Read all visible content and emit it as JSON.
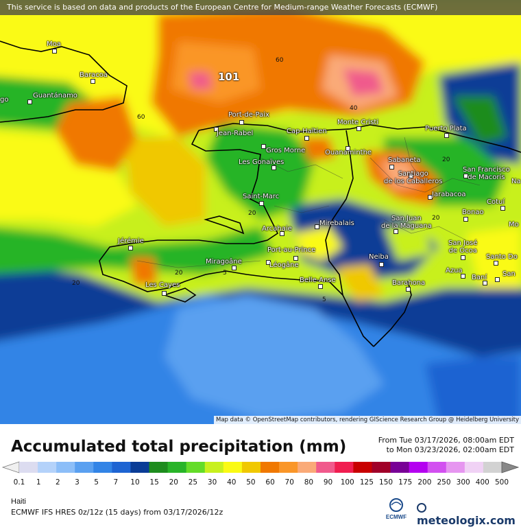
{
  "banner": "This service is based on data and products of the European Centre for Medium-range Weather Forecasts (ECMWF)",
  "attribution": "Map data © OpenStreetMap contributors, rendering GIScience Research Group @ Heidelberg University",
  "max_label": "101",
  "contour_labels": [
    "60",
    "60",
    "40",
    "20",
    "20",
    "20",
    "5",
    "5",
    "20",
    "20"
  ],
  "cities": [
    {
      "name": "Moa"
    },
    {
      "name": "Baracoa"
    },
    {
      "name": "Guantánamo"
    },
    {
      "name": "go"
    },
    {
      "name": "Port-de-Paix"
    },
    {
      "name": "Jean-Rabel"
    },
    {
      "name": "Cap-Haïtien"
    },
    {
      "name": "Monte Cristi"
    },
    {
      "name": "Puerto Plata"
    },
    {
      "name": "Gros Morne"
    },
    {
      "name": "Ouanaminthe"
    },
    {
      "name": "Les Gonaïves"
    },
    {
      "name": "Sabaneta"
    },
    {
      "name": "Santiago\nde los Caballeros"
    },
    {
      "name": "San Francisco\nde Macorís"
    },
    {
      "name": "Na"
    },
    {
      "name": "Saint-Marc"
    },
    {
      "name": "Jarabacoa"
    },
    {
      "name": "Cotuí"
    },
    {
      "name": "Bonao"
    },
    {
      "name": "Mo"
    },
    {
      "name": "Arcahaie"
    },
    {
      "name": "Mirebalais"
    },
    {
      "name": "San Juan\nde la Maguana"
    },
    {
      "name": "Jérémie"
    },
    {
      "name": "Port-au-Prince"
    },
    {
      "name": "San José\nde Ocoa"
    },
    {
      "name": "Santo Do"
    },
    {
      "name": "Miragoâne"
    },
    {
      "name": "Léogâne"
    },
    {
      "name": "Neiba"
    },
    {
      "name": "Azua"
    },
    {
      "name": "Baní"
    },
    {
      "name": "San"
    },
    {
      "name": "Belle-Anse"
    },
    {
      "name": "Les Cayes"
    },
    {
      "name": "Barahona"
    }
  ],
  "legend": {
    "title": "Accumulated total precipitation (mm)",
    "from_line": "From Tue 03/17/2026, 08:00am EDT",
    "to_line": "to Mon 03/23/2026, 02:00am EDT",
    "ticks": [
      "0.1",
      "1",
      "2",
      "3",
      "5",
      "7",
      "10",
      "15",
      "20",
      "25",
      "30",
      "40",
      "50",
      "60",
      "70",
      "80",
      "90",
      "100",
      "125",
      "150",
      "175",
      "200",
      "250",
      "300",
      "400",
      "500"
    ],
    "colors": [
      "#dcdcf0",
      "#b4d2fa",
      "#8cbef8",
      "#5aa0f0",
      "#3284e6",
      "#1e64d2",
      "#0a3c96",
      "#1e8c1e",
      "#28b428",
      "#64dc28",
      "#c8f01e",
      "#fafa14",
      "#f0c800",
      "#f07800",
      "#fa9628",
      "#faaa78",
      "#f05a8c",
      "#f01e50",
      "#c80000",
      "#a00028",
      "#780096",
      "#b400f0",
      "#d250f0",
      "#e696f0",
      "#f0d2f5",
      "#d2d2d2"
    ],
    "region": "Haiti",
    "model": "ECMWF IFS HRES 0z/12z (15 days) from  03/17/2026/12z",
    "ecmwf_logo_text": "ECMWF",
    "brand": "meteologix.com"
  }
}
